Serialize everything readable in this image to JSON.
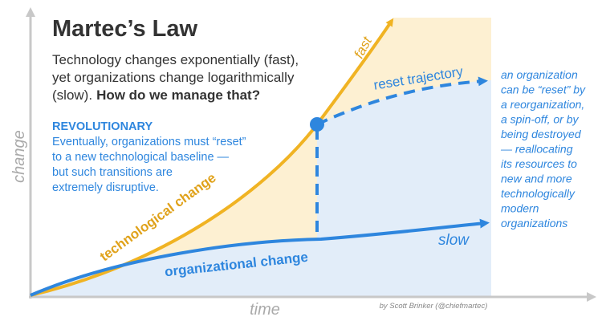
{
  "title": "Martec’s Law",
  "description": {
    "lines": [
      "Technology changes exponentially (fast),",
      "yet organizations change logarithmically",
      "(slow)."
    ],
    "question": "How do we manage that?"
  },
  "callout": {
    "heading": "REVOLUTIONARY",
    "lines": [
      "Eventually, organizations must “reset”",
      "to a new technological baseline —",
      "but such transitions are",
      "extremely disruptive."
    ]
  },
  "axes": {
    "y_label": "change",
    "x_label": "time"
  },
  "curves": {
    "technological": "technological change",
    "technological_tag": "fast",
    "organizational": "organizational change",
    "organizational_tag": "slow",
    "reset": "reset trajectory"
  },
  "note": {
    "lines": [
      "an organization",
      "can be “reset” by",
      "a reorganization,",
      "a spin-off, or by",
      "being destroyed",
      "— reallocating",
      "its resources to",
      "new and more",
      "technologically",
      "modern",
      "organizations"
    ]
  },
  "credit": "by Scott Brinker (@chiefmartec)"
}
